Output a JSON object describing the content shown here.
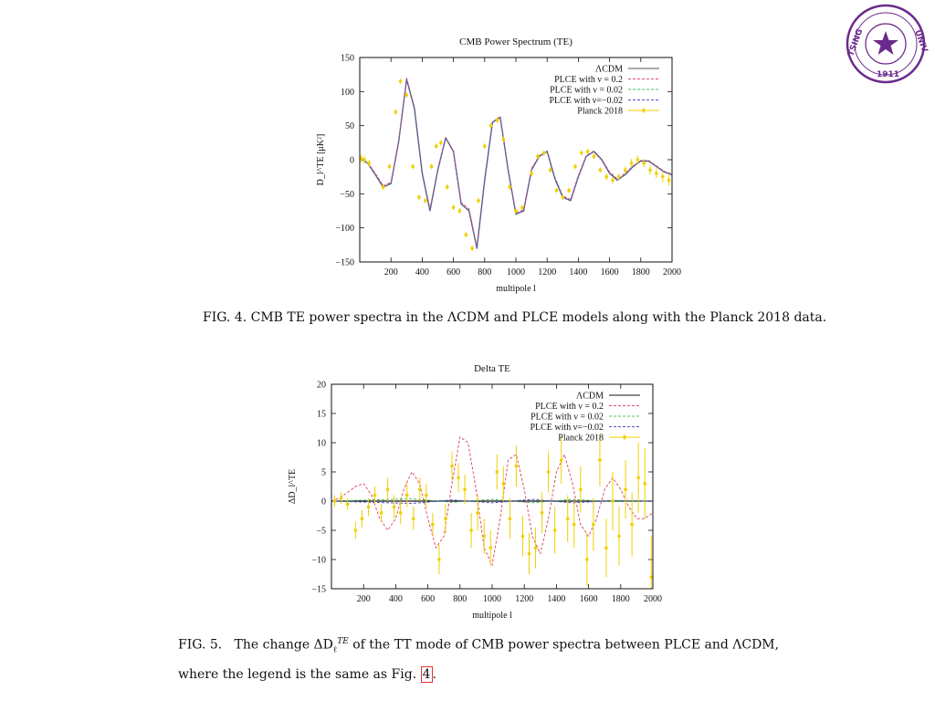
{
  "seal": {
    "name": "TSINGHUA UNIVERSITY",
    "year": "1911",
    "color": "#6a2a8c"
  },
  "chart_data": [
    {
      "type": "line",
      "title": "CMB Power Spectrum (TE)",
      "xlabel": "multipole l",
      "ylabel": "D_l^TE [μK²]",
      "xlim": [
        0,
        2000
      ],
      "ylim": [
        -150,
        150
      ],
      "xticks": [
        200,
        400,
        600,
        800,
        1000,
        1200,
        1400,
        1600,
        1800,
        2000
      ],
      "yticks": [
        -150,
        -100,
        -50,
        0,
        50,
        100,
        150
      ],
      "legend_position": "top-right",
      "series": [
        {
          "name": "ΛCDM",
          "color": "#555555",
          "style": "solid",
          "x": [
            0,
            50,
            100,
            150,
            200,
            250,
            300,
            350,
            400,
            450,
            500,
            550,
            600,
            650,
            700,
            750,
            800,
            850,
            900,
            950,
            1000,
            1050,
            1100,
            1150,
            1200,
            1250,
            1300,
            1350,
            1400,
            1450,
            1500,
            1550,
            1600,
            1650,
            1700,
            1750,
            1800,
            1850,
            1900,
            1950,
            2000
          ],
          "y": [
            2,
            -5,
            -22,
            -40,
            -35,
            28,
            118,
            75,
            -20,
            -75,
            -15,
            32,
            12,
            -65,
            -75,
            -130,
            -30,
            55,
            62,
            -15,
            -80,
            -75,
            -15,
            5,
            12,
            -28,
            -55,
            -60,
            -25,
            5,
            12,
            0,
            -20,
            -30,
            -22,
            -10,
            -2,
            -2,
            -10,
            -18,
            -22
          ]
        },
        {
          "name": "PLCE  with ν =  0.2",
          "color": "#e0506a",
          "style": "dashed",
          "x": [
            0,
            50,
            100,
            150,
            200,
            250,
            300,
            350,
            400,
            450,
            500,
            550,
            600,
            650,
            700,
            750,
            800,
            850,
            900,
            950,
            1000,
            1050,
            1100,
            1150,
            1200,
            1250,
            1300,
            1350,
            1400,
            1450,
            1500,
            1550,
            1600,
            1650,
            1700,
            1750,
            1800,
            1850,
            1900,
            1950,
            2000
          ],
          "y": [
            2,
            -4,
            -20,
            -38,
            -33,
            30,
            120,
            77,
            -18,
            -72,
            -14,
            33,
            13,
            -63,
            -72,
            -128,
            -28,
            56,
            63,
            -13,
            -78,
            -73,
            -13,
            6,
            13,
            -26,
            -53,
            -58,
            -23,
            6,
            13,
            1,
            -18,
            -28,
            -20,
            -9,
            -1,
            -1,
            -9,
            -17,
            -21
          ]
        },
        {
          "name": "PLCE with ν = 0.02",
          "color": "#4cc060",
          "style": "dashed",
          "x": [
            0,
            50,
            100,
            150,
            200,
            250,
            300,
            350,
            400,
            450,
            500,
            550,
            600,
            650,
            700,
            750,
            800,
            850,
            900,
            950,
            1000,
            1050,
            1100,
            1150,
            1200,
            1250,
            1300,
            1350,
            1400,
            1450,
            1500,
            1550,
            1600,
            1650,
            1700,
            1750,
            1800,
            1850,
            1900,
            1950,
            2000
          ],
          "y": [
            2,
            -5,
            -22,
            -40,
            -35,
            28,
            118,
            75,
            -20,
            -75,
            -15,
            32,
            12,
            -65,
            -75,
            -130,
            -30,
            55,
            62,
            -15,
            -80,
            -75,
            -15,
            5,
            12,
            -28,
            -55,
            -60,
            -25,
            5,
            12,
            0,
            -20,
            -30,
            -22,
            -10,
            -2,
            -2,
            -10,
            -18,
            -22
          ]
        },
        {
          "name": "PLCE with ν=−0.02",
          "color": "#5050c8",
          "style": "dashed",
          "x": [
            0,
            50,
            100,
            150,
            200,
            250,
            300,
            350,
            400,
            450,
            500,
            550,
            600,
            650,
            700,
            750,
            800,
            850,
            900,
            950,
            1000,
            1050,
            1100,
            1150,
            1200,
            1250,
            1300,
            1350,
            1400,
            1450,
            1500,
            1550,
            1600,
            1650,
            1700,
            1750,
            1800,
            1850,
            1900,
            1950,
            2000
          ],
          "y": [
            2,
            -5,
            -22,
            -40,
            -35,
            28,
            118,
            75,
            -20,
            -75,
            -15,
            32,
            12,
            -65,
            -75,
            -130,
            -30,
            55,
            62,
            -15,
            -80,
            -75,
            -15,
            5,
            12,
            -28,
            -55,
            -60,
            -25,
            5,
            12,
            0,
            -20,
            -30,
            -22,
            -10,
            -2,
            -2,
            -10,
            -18,
            -22
          ]
        },
        {
          "name": "Planck 2018",
          "color": "#f0d000",
          "style": "points",
          "x": [
            10,
            30,
            60,
            150,
            190,
            230,
            260,
            300,
            340,
            380,
            420,
            460,
            490,
            520,
            560,
            600,
            640,
            680,
            720,
            760,
            800,
            840,
            880,
            920,
            960,
            1000,
            1040,
            1100,
            1140,
            1180,
            1220,
            1260,
            1300,
            1340,
            1380,
            1420,
            1460,
            1500,
            1540,
            1580,
            1620,
            1660,
            1700,
            1740,
            1780,
            1820,
            1860,
            1900,
            1940,
            1980
          ],
          "y": [
            2,
            0,
            -5,
            -40,
            -10,
            70,
            115,
            95,
            -10,
            -55,
            -60,
            -10,
            20,
            25,
            -40,
            -70,
            -75,
            -110,
            -130,
            -60,
            20,
            50,
            58,
            30,
            -40,
            -75,
            -70,
            -20,
            5,
            10,
            -15,
            -45,
            -55,
            -45,
            -10,
            10,
            12,
            5,
            -15,
            -25,
            -30,
            -25,
            -15,
            -5,
            0,
            -5,
            -15,
            -20,
            -25,
            -30
          ],
          "err": [
            6,
            6,
            5,
            4,
            4,
            4,
            4,
            4,
            4,
            4,
            4,
            4,
            4,
            4,
            4,
            4,
            4,
            4,
            4,
            4,
            4,
            4,
            4,
            4,
            4,
            4,
            4,
            4,
            4,
            4,
            4,
            4,
            4,
            4,
            4,
            4,
            4,
            4,
            4,
            5,
            5,
            5,
            5,
            6,
            6,
            6,
            7,
            7,
            8,
            8
          ]
        }
      ]
    },
    {
      "type": "line",
      "title": "Delta TE",
      "xlabel": "multipole l",
      "ylabel": "ΔD_l^TE",
      "xlim": [
        0,
        2000
      ],
      "ylim": [
        -15,
        20
      ],
      "xticks": [
        200,
        400,
        600,
        800,
        1000,
        1200,
        1400,
        1600,
        1800,
        2000
      ],
      "yticks": [
        -15,
        -10,
        -5,
        0,
        5,
        10,
        15,
        20
      ],
      "legend_position": "top-right",
      "series": [
        {
          "name": "ΛCDM",
          "color": "#111111",
          "style": "solid",
          "x": [
            0,
            2000
          ],
          "y": [
            0,
            0
          ]
        },
        {
          "name": "PLCE  with ν =  0.2",
          "color": "#e0506a",
          "style": "dashed",
          "x": [
            0,
            50,
            100,
            150,
            200,
            250,
            300,
            350,
            400,
            450,
            500,
            550,
            600,
            650,
            700,
            750,
            800,
            850,
            900,
            950,
            1000,
            1050,
            1100,
            1150,
            1200,
            1250,
            1300,
            1350,
            1400,
            1450,
            1500,
            1550,
            1600,
            1650,
            1700,
            1750,
            1800,
            1850,
            1900,
            1950,
            2000
          ],
          "y": [
            0,
            0.5,
            1.5,
            2.5,
            3,
            1,
            -3,
            -5,
            -3,
            2,
            5,
            3,
            -3,
            -8,
            -6,
            3,
            11,
            10,
            2,
            -8,
            -11,
            -3,
            7,
            8,
            2,
            -6,
            -9,
            -3,
            5,
            8,
            3,
            -4,
            -6,
            -3,
            2,
            4,
            2,
            -1,
            -3,
            -3,
            -2
          ]
        },
        {
          "name": "PLCE with ν = 0.02",
          "color": "#4cc060",
          "style": "dashed",
          "x": [
            0,
            250,
            500,
            750,
            1000,
            1250,
            1500,
            1750,
            2000
          ],
          "y": [
            0,
            0.2,
            0.4,
            -0.2,
            0.3,
            -0.3,
            0.3,
            -0.1,
            0
          ]
        },
        {
          "name": "PLCE with ν=−0.02",
          "color": "#5050c8",
          "style": "dashed",
          "x": [
            0,
            250,
            500,
            750,
            1000,
            1250,
            1500,
            1750,
            2000
          ],
          "y": [
            0,
            -0.2,
            -0.4,
            0.2,
            -0.3,
            0.3,
            -0.3,
            0.1,
            0
          ]
        },
        {
          "name": "Planck 2018",
          "color": "#f0d000",
          "style": "points",
          "x": [
            20,
            60,
            100,
            150,
            190,
            230,
            270,
            310,
            350,
            390,
            430,
            470,
            510,
            550,
            590,
            630,
            670,
            710,
            750,
            790,
            830,
            870,
            910,
            950,
            990,
            1030,
            1070,
            1110,
            1150,
            1190,
            1230,
            1270,
            1310,
            1350,
            1390,
            1430,
            1470,
            1510,
            1550,
            1590,
            1630,
            1670,
            1710,
            1750,
            1790,
            1830,
            1870,
            1910,
            1950,
            1990
          ],
          "y": [
            0,
            0.5,
            -0.5,
            -5,
            -3,
            -1,
            1,
            -2,
            2,
            -1,
            -2,
            1,
            -3,
            2,
            1,
            -4,
            -10,
            -3,
            6,
            4,
            2,
            -5,
            -2,
            -6,
            -8,
            5,
            3,
            -3,
            6,
            -6,
            -9,
            -8,
            -2,
            5,
            -5,
            7,
            -3,
            -4,
            2,
            -10,
            -4,
            7,
            -8,
            0,
            -6,
            2,
            -4,
            4,
            3,
            -13
          ],
          "err": [
            1,
            1,
            1,
            1.5,
            1.5,
            1.5,
            1.5,
            1.5,
            2,
            2,
            2,
            2,
            2,
            2,
            2,
            2,
            2.5,
            2.5,
            2.5,
            2.5,
            2.5,
            3,
            3,
            3,
            3,
            3,
            3,
            3.5,
            3.5,
            3.5,
            3.5,
            3.5,
            3.5,
            3.5,
            4,
            4,
            4,
            4,
            4,
            4.5,
            4.5,
            4.5,
            5,
            5,
            5,
            5,
            5.5,
            6,
            6,
            7
          ]
        }
      ]
    }
  ],
  "captions": {
    "fig4": "FIG. 4. CMB TE power spectra in the ΛCDM and PLCE models along with the Planck 2018 data.",
    "fig5_line1_prefix": "FIG. 5.",
    "fig5_line1_body_a": "The change ΔD",
    "fig5_sub": "ℓ",
    "fig5_sup": "TE",
    "fig5_line1_body_b": " of the TT mode of CMB power spectra between PLCE and ΛCDM,",
    "fig5_line2": "where the legend is the same as Fig. ",
    "fig5_ref": "4",
    "fig5_end": "."
  }
}
